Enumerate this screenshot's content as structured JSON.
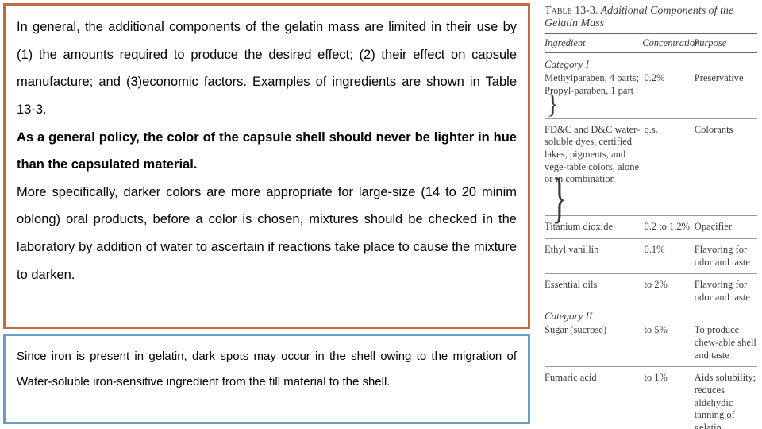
{
  "colors": {
    "box1_border": "#c06a46",
    "box2_border": "#6b9ec4",
    "text": "#000000",
    "table_text": "#3c3c3c",
    "rule": "#666666"
  },
  "left": {
    "box1": {
      "p1": "In general, the additional components of the gelatin mass are limited in their use by (1) the amounts required to produce the desired effect; (2) their effect on capsule manufacture; and (3)economic factors. Examples of ingredients are shown in Table 13-3.",
      "p2_bold": "As a general policy, the color of the capsule shell should never be lighter in hue than the capsulated material.",
      "p3": "More specifically, darker colors are more appropriate for large-size (14 to 20 minim oblong) oral products, before a color is chosen, mixtures should be checked in the laboratory by addition of water to ascertain if reactions take place to cause the mixture to darken."
    },
    "box2": {
      "p1": "Since iron is present in gelatin, dark spots may occur in the shell owing to the migration of Water-soluble iron-sensitive ingredient from the fill material  to the shell."
    }
  },
  "table": {
    "number": "Table 13-3.",
    "title_rest": " Additional Components of the Gelatin Mass",
    "headers": {
      "ingredient": "Ingredient",
      "concentration": "Concentration",
      "purpose": "Purpose"
    },
    "cat1_label": "Category I",
    "cat2_label": "Category II",
    "rows1": [
      {
        "ingredient": "Methylparaben, 4 parts; Propyl-paraben, 1 part",
        "brace": true,
        "concentration": "0.2%",
        "purpose": "Preservative"
      },
      {
        "ingredient": "FD&C and D&C water-soluble dyes, certified lakes, pigments, and vege-table colors, alone or in combination",
        "brace2": true,
        "concentration": "q.s.",
        "purpose": "Colorants"
      },
      {
        "ingredient": "Titanium dioxide",
        "concentration": "0.2 to 1.2%",
        "purpose": "Opacifier"
      },
      {
        "ingredient": "Ethyl vanillin",
        "concentration": "0.1%",
        "purpose": "Flavoring for odor and taste"
      },
      {
        "ingredient": "Essential oils",
        "concentration": "to 2%",
        "purpose": "Flavoring for odor and taste"
      }
    ],
    "rows2": [
      {
        "ingredient": "Sugar (sucrose)",
        "concentration": "to 5%",
        "purpose": "To produce chew-able shell and taste"
      },
      {
        "ingredient": "Fumaric acid",
        "concentration": "to 1%",
        "purpose": "Aids solubility; reduces aldehydic tanning of gelatin"
      }
    ]
  }
}
